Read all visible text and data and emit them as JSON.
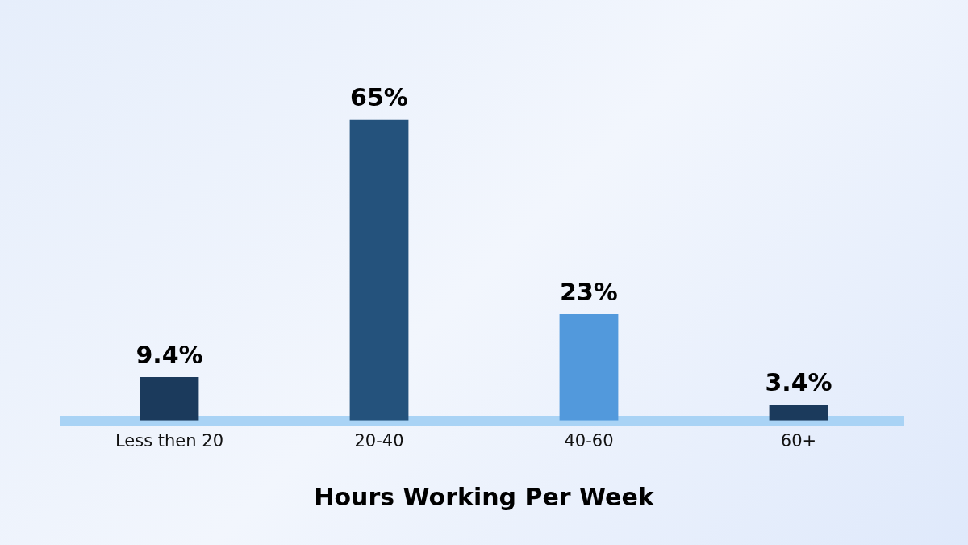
{
  "chart_data": {
    "type": "bar",
    "xlabel": "Hours Working Per Week",
    "categories": [
      "Less then 20",
      "20-40",
      "40-60",
      "60+"
    ],
    "values": [
      9.4,
      65,
      23,
      3.4
    ],
    "colors": [
      "#1b3a5c",
      "#24527c",
      "#5299dc",
      "#1b3a5c"
    ],
    "value_labels": [
      "9.4%",
      "65%",
      "23%",
      "3.4%"
    ],
    "grid": false,
    "legend": false,
    "tick_labels": "x"
  }
}
